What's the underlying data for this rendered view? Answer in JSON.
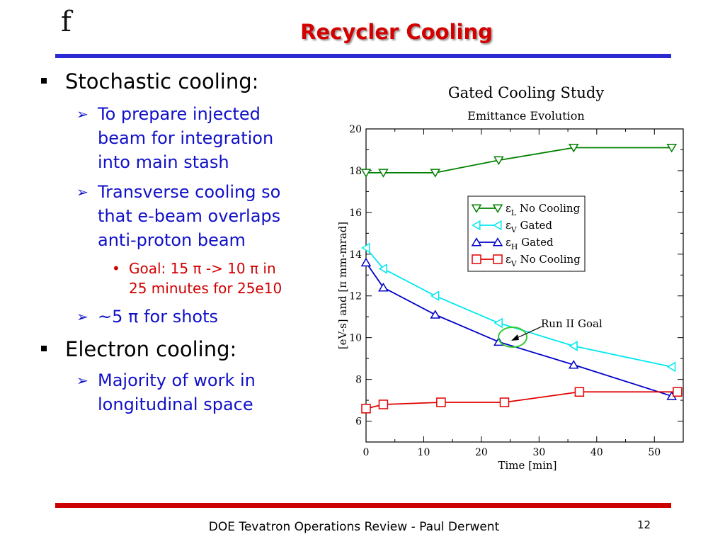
{
  "slide": {
    "logo": "f",
    "title": "Recycler Cooling",
    "footer": "DOE Tevatron Operations Review - Paul Derwent",
    "page_number": "12"
  },
  "bullets": {
    "stochastic": "Stochastic cooling:",
    "stochastic_sub1_line1": "To prepare injected",
    "stochastic_sub1_line2": "beam for integration",
    "stochastic_sub1_line3": "into main stash",
    "stochastic_sub2_line1": "Transverse cooling so",
    "stochastic_sub2_line2": "that e-beam overlaps",
    "stochastic_sub2_line3": "anti-proton beam",
    "goal_line1": "Goal:  15 π -> 10 π in",
    "goal_line2": "25 minutes for 25e10",
    "stochastic_sub3": "~5 π for shots",
    "electron": "Electron cooling:",
    "electron_sub1_line1": "Majority of work in",
    "electron_sub1_line2": "longitudinal space"
  },
  "chart_data": {
    "type": "line",
    "title": "Gated Cooling Study",
    "subtitle": "Emittance Evolution",
    "xlabel": "Time [min]",
    "ylabel": "[eV-s] and [π mm-mrad]",
    "xlim": [
      0,
      55
    ],
    "ylim": [
      5,
      20
    ],
    "xticks": [
      0,
      10,
      20,
      30,
      40,
      50
    ],
    "yticks": [
      6,
      8,
      10,
      12,
      14,
      16,
      18,
      20
    ],
    "legend_position": "center-right",
    "annotation": "Run II Goal",
    "series": [
      {
        "name": "εL No Cooling",
        "sym": "ε",
        "sub": "L",
        "label": "No Cooling",
        "color": "#008000",
        "marker": "triangle-down",
        "x": [
          0,
          3,
          12,
          23,
          36,
          53
        ],
        "y": [
          17.9,
          17.9,
          17.9,
          18.5,
          19.1,
          19.1
        ]
      },
      {
        "name": "εV Gated",
        "sym": "ε",
        "sub": "V",
        "label": "Gated",
        "color": "#00e8f0",
        "marker": "triangle-left",
        "x": [
          0,
          3,
          12,
          23,
          36,
          53
        ],
        "y": [
          14.3,
          13.3,
          12.0,
          10.7,
          9.6,
          8.6
        ]
      },
      {
        "name": "εH Gated",
        "sym": "ε",
        "sub": "H",
        "label": "Gated",
        "color": "#0000c8",
        "marker": "triangle-up",
        "x": [
          0,
          3,
          12,
          23,
          36,
          53
        ],
        "y": [
          13.6,
          12.4,
          11.1,
          9.8,
          8.7,
          7.2
        ]
      },
      {
        "name": "εV No Cooling",
        "sym": "ε",
        "sub": "V",
        "label": "No Cooling",
        "color": "#e00000",
        "marker": "square",
        "x": [
          0,
          3,
          13,
          24,
          37,
          54
        ],
        "y": [
          6.6,
          6.8,
          6.9,
          6.9,
          7.4,
          7.4
        ]
      }
    ]
  }
}
